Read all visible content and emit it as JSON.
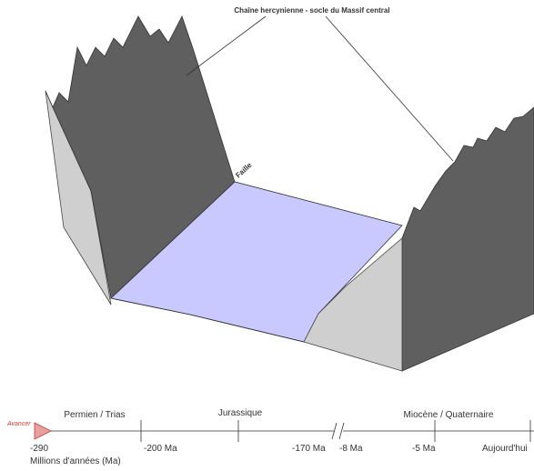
{
  "diagram": {
    "title": "Chaîne hercynienne - socle du Massif central",
    "fault_label": "Faille",
    "colors": {
      "mountain_dark": "#5f5f5f",
      "mountain_light": "#cfcfcf",
      "basin_floor": "#c9c9ff",
      "axis": "#333333",
      "play_button": "#e8a0a0",
      "play_button_stroke": "#c0392b"
    }
  },
  "timeline": {
    "play_label": "Avancer",
    "axis_title": "Millions d'années (Ma)",
    "periods": [
      "Permien / Trias",
      "Jurassique",
      "Miocène / Quaternaire"
    ],
    "ticks": [
      "-290",
      "-200 Ma",
      "-170 Ma",
      "-8 Ma",
      "-5 Ma",
      "Aujourd'hui"
    ],
    "break_symbol": "//"
  }
}
